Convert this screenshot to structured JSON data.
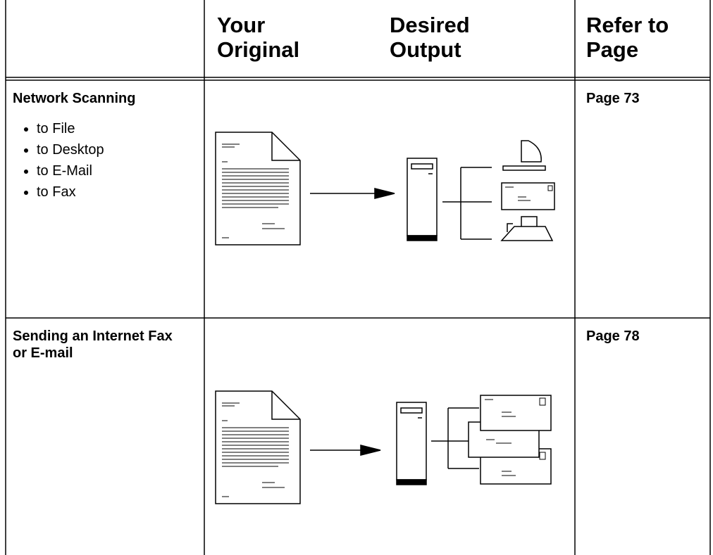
{
  "table": {
    "header": [
      "Your Original",
      "Desired Output",
      "Refer to Page"
    ],
    "rows": [
      {
        "title": "Network Scanning",
        "items": [
          "to File",
          "to Desktop",
          "to E-Mail",
          "to Fax"
        ],
        "page": "Page 73"
      },
      {
        "title": "Sending an Internet Fax or E-mail",
        "page": "Page 78"
      }
    ]
  }
}
